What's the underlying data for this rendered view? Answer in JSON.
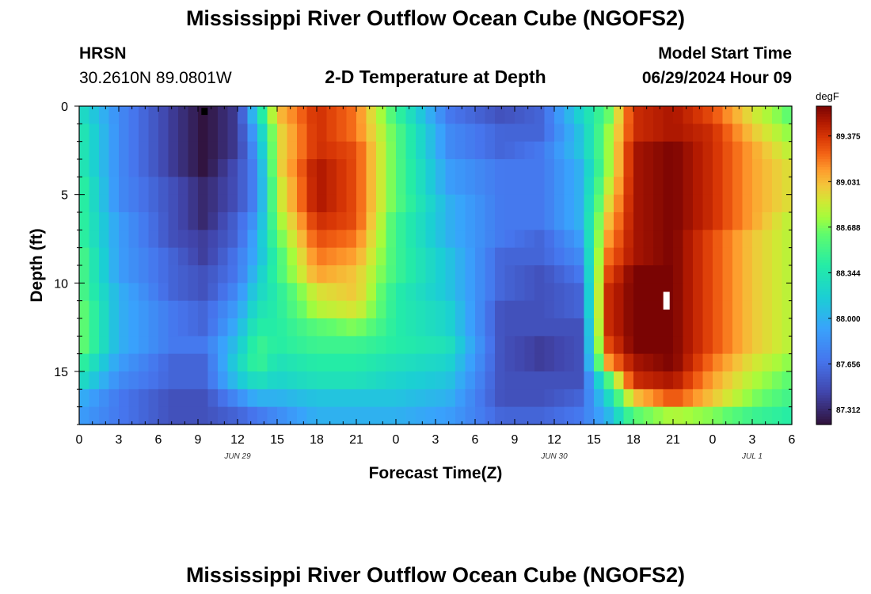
{
  "page": {
    "title_top": "Mississippi River Outflow Ocean Cube (NGOFS2)",
    "title_bottom": "Mississippi River Outflow Ocean Cube (NGOFS2)",
    "station_name": "HRSN",
    "station_coords": "30.2610N  89.0801W",
    "subtitle": "2-D Temperature at Depth",
    "model_start_label": "Model Start Time",
    "model_start_value": "06/29/2024 Hour 09"
  },
  "chart_data": {
    "type": "heatmap",
    "title": "2-D Temperature at Depth",
    "xlabel": "Forecast Time(Z)",
    "ylabel": "Depth (ft)",
    "x_hours_range": [
      0,
      54
    ],
    "x_ticks": [
      {
        "hour": 0,
        "label": "0"
      },
      {
        "hour": 3,
        "label": "3"
      },
      {
        "hour": 6,
        "label": "6"
      },
      {
        "hour": 9,
        "label": "9"
      },
      {
        "hour": 12,
        "label": "12"
      },
      {
        "hour": 15,
        "label": "15"
      },
      {
        "hour": 18,
        "label": "18"
      },
      {
        "hour": 21,
        "label": "21"
      },
      {
        "hour": 24,
        "label": "0"
      },
      {
        "hour": 27,
        "label": "3"
      },
      {
        "hour": 30,
        "label": "6"
      },
      {
        "hour": 33,
        "label": "9"
      },
      {
        "hour": 36,
        "label": "12"
      },
      {
        "hour": 39,
        "label": "15"
      },
      {
        "hour": 42,
        "label": "18"
      },
      {
        "hour": 45,
        "label": "21"
      },
      {
        "hour": 48,
        "label": "0"
      },
      {
        "hour": 51,
        "label": "3"
      },
      {
        "hour": 54,
        "label": "6"
      }
    ],
    "date_labels": [
      {
        "hour": 12,
        "label": "JUN 29"
      },
      {
        "hour": 36,
        "label": "JUN 30"
      },
      {
        "hour": 51,
        "label": "JUL 1"
      }
    ],
    "ylim": [
      0,
      18
    ],
    "y_ticks": [
      0,
      5,
      10,
      15
    ],
    "colorbar": {
      "unit": "degF",
      "range": [
        87.2,
        89.6
      ],
      "tick_values": [
        87.312,
        87.656,
        88.0,
        88.344,
        88.688,
        89.031,
        89.375
      ],
      "tick_labels": [
        "87.312",
        "87.656",
        "88.000",
        "88.344",
        "88.688",
        "89.031",
        "89.375"
      ]
    },
    "depth_levels_ft": [
      0.5,
      1.5,
      2.5,
      3.5,
      4.5,
      5.5,
      6.5,
      7.5,
      8.5,
      9.5,
      10.5,
      11.5,
      12.5,
      13.5,
      14.5,
      15.5,
      16.5,
      17.5
    ],
    "temperature_keyframes": [
      {
        "hour": 0,
        "temps": [
          88.3,
          88.4,
          88.4,
          88.4,
          88.5,
          88.5,
          88.5,
          88.5,
          88.6,
          88.6,
          88.6,
          88.7,
          88.7,
          88.7,
          88.5,
          88.3,
          88.0,
          87.9
        ]
      },
      {
        "hour": 3,
        "temps": [
          87.8,
          87.8,
          87.8,
          87.8,
          87.8,
          87.8,
          87.9,
          87.9,
          87.9,
          87.9,
          88.0,
          88.0,
          88.0,
          88.0,
          87.9,
          87.8,
          87.7,
          87.7
        ]
      },
      {
        "hour": 7,
        "temps": [
          87.4,
          87.4,
          87.4,
          87.4,
          87.5,
          87.5,
          87.5,
          87.5,
          87.6,
          87.6,
          87.6,
          87.7,
          87.7,
          87.7,
          87.6,
          87.6,
          87.5,
          87.5
        ]
      },
      {
        "hour": 9.5,
        "temps": [
          87.2,
          87.2,
          87.2,
          87.2,
          87.3,
          87.3,
          87.3,
          87.4,
          87.4,
          87.5,
          87.5,
          87.6,
          87.6,
          87.7,
          87.6,
          87.6,
          87.5,
          87.5
        ]
      },
      {
        "hour": 12,
        "temps": [
          87.4,
          87.4,
          87.4,
          87.5,
          87.5,
          87.5,
          87.6,
          87.6,
          87.7,
          87.7,
          87.8,
          87.9,
          88.0,
          88.1,
          88.2,
          88.1,
          87.8,
          87.6
        ]
      },
      {
        "hour": 13.5,
        "temps": [
          88.2,
          88.0,
          87.9,
          87.8,
          87.8,
          87.8,
          87.9,
          88.0,
          88.0,
          88.1,
          88.2,
          88.3,
          88.4,
          88.5,
          88.5,
          88.3,
          88.0,
          87.7
        ]
      },
      {
        "hour": 15,
        "temps": [
          89.0,
          88.9,
          88.9,
          88.9,
          88.8,
          88.8,
          88.7,
          88.6,
          88.5,
          88.5,
          88.4,
          88.4,
          88.4,
          88.4,
          88.3,
          88.2,
          88.0,
          87.8
        ]
      },
      {
        "hour": 18,
        "temps": [
          89.4,
          89.4,
          89.4,
          89.5,
          89.5,
          89.5,
          89.4,
          89.3,
          89.2,
          89.1,
          88.9,
          88.8,
          88.6,
          88.5,
          88.4,
          88.3,
          88.1,
          88.0
        ]
      },
      {
        "hour": 21,
        "temps": [
          89.2,
          89.2,
          89.3,
          89.3,
          89.3,
          89.3,
          89.3,
          89.2,
          89.1,
          89.0,
          89.0,
          88.9,
          88.7,
          88.5,
          88.4,
          88.3,
          88.1,
          88.0
        ]
      },
      {
        "hour": 24,
        "temps": [
          88.5,
          88.6,
          88.6,
          88.6,
          88.6,
          88.6,
          88.5,
          88.5,
          88.5,
          88.5,
          88.4,
          88.4,
          88.4,
          88.4,
          88.3,
          88.2,
          88.1,
          88.0
        ]
      },
      {
        "hour": 28,
        "temps": [
          87.7,
          87.8,
          87.8,
          87.9,
          87.9,
          88.0,
          88.0,
          88.0,
          88.1,
          88.1,
          88.1,
          88.2,
          88.2,
          88.3,
          88.2,
          88.1,
          88.0,
          87.9
        ]
      },
      {
        "hour": 32,
        "temps": [
          87.5,
          87.6,
          87.6,
          87.7,
          87.7,
          87.7,
          87.7,
          87.7,
          87.6,
          87.6,
          87.6,
          87.5,
          87.5,
          87.5,
          87.5,
          87.5,
          87.5,
          87.6
        ]
      },
      {
        "hour": 35,
        "temps": [
          87.6,
          87.6,
          87.7,
          87.7,
          87.7,
          87.7,
          87.7,
          87.6,
          87.6,
          87.5,
          87.5,
          87.5,
          87.5,
          87.4,
          87.4,
          87.5,
          87.5,
          87.6
        ]
      },
      {
        "hour": 38,
        "temps": [
          88.2,
          88.1,
          88.1,
          88.0,
          88.0,
          88.0,
          88.0,
          87.9,
          87.8,
          87.7,
          87.6,
          87.6,
          87.5,
          87.5,
          87.5,
          87.5,
          87.6,
          87.7
        ]
      },
      {
        "hour": 40,
        "temps": [
          88.6,
          88.7,
          88.7,
          88.7,
          88.8,
          88.9,
          89.0,
          89.1,
          89.2,
          89.3,
          89.4,
          89.4,
          89.4,
          89.3,
          89.1,
          88.5,
          88.2,
          88.0
        ]
      },
      {
        "hour": 42,
        "temps": [
          89.4,
          89.4,
          89.5,
          89.5,
          89.5,
          89.5,
          89.5,
          89.5,
          89.5,
          89.6,
          89.6,
          89.6,
          89.6,
          89.6,
          89.5,
          89.4,
          89.0,
          88.6
        ]
      },
      {
        "hour": 45,
        "temps": [
          89.5,
          89.5,
          89.6,
          89.6,
          89.6,
          89.6,
          89.6,
          89.6,
          89.6,
          89.6,
          89.6,
          89.6,
          89.6,
          89.6,
          89.6,
          89.5,
          89.3,
          88.8
        ]
      },
      {
        "hour": 48,
        "temps": [
          89.3,
          89.4,
          89.4,
          89.4,
          89.4,
          89.4,
          89.4,
          89.3,
          89.3,
          89.3,
          89.3,
          89.3,
          89.3,
          89.3,
          89.2,
          89.1,
          89.0,
          88.7
        ]
      },
      {
        "hour": 51,
        "temps": [
          88.9,
          89.0,
          89.1,
          89.1,
          89.1,
          89.1,
          89.1,
          89.0,
          89.0,
          89.0,
          89.0,
          89.0,
          89.0,
          89.0,
          88.9,
          88.8,
          88.7,
          88.5
        ]
      },
      {
        "hour": 54,
        "temps": [
          88.6,
          88.7,
          88.8,
          88.9,
          88.9,
          88.9,
          88.8,
          88.8,
          88.8,
          88.8,
          88.8,
          88.8,
          88.8,
          88.8,
          88.7,
          88.6,
          88.5,
          88.4
        ]
      }
    ],
    "markers": [
      {
        "hour": 9.5,
        "depth_ft_range": [
          0.1,
          0.5
        ],
        "color": "#000000"
      },
      {
        "hour": 44.5,
        "depth_ft_range": [
          10.5,
          11.5
        ],
        "color": "#ffffff"
      }
    ]
  }
}
